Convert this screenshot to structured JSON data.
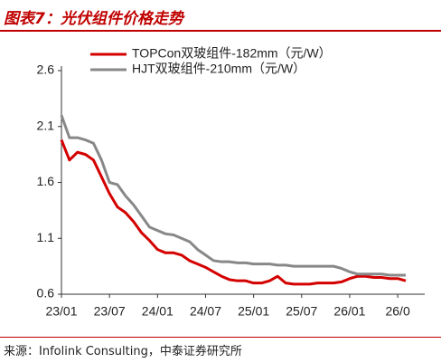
{
  "chart_data": {
    "type": "line",
    "title": "图表7：光伏组件价格走势",
    "source": "来源：Infolink Consulting，中泰证券研究所",
    "categories": [
      "23/01",
      null,
      null,
      null,
      null,
      null,
      "23/07",
      null,
      null,
      null,
      null,
      null,
      "24/01",
      null,
      null,
      null,
      null,
      null,
      "24/07",
      null,
      null,
      null,
      null,
      null,
      "25/01",
      null,
      null,
      null,
      null,
      null,
      "25/07",
      null,
      null,
      null,
      null,
      null,
      "26/01",
      null,
      null,
      null,
      null,
      null,
      "26/0",
      null
    ],
    "series": [
      {
        "name": "TOPCon双玻组件-182mm（元/W）",
        "color": "#d40000",
        "values": [
          1.98,
          1.8,
          1.87,
          1.85,
          1.8,
          1.65,
          1.5,
          1.38,
          1.33,
          1.25,
          1.15,
          1.08,
          1.0,
          0.97,
          0.97,
          0.95,
          0.9,
          0.87,
          0.84,
          0.8,
          0.76,
          0.73,
          0.72,
          0.72,
          0.7,
          0.7,
          0.72,
          0.76,
          0.7,
          0.69,
          0.69,
          0.69,
          0.7,
          0.7,
          0.7,
          0.71,
          0.74,
          0.76,
          0.76,
          0.75,
          0.75,
          0.74,
          0.74,
          0.72
        ]
      },
      {
        "name": "HJT双玻组件-210mm（元/W）",
        "color": "#888888",
        "values": [
          2.2,
          2.0,
          2.0,
          1.98,
          1.95,
          1.8,
          1.6,
          1.58,
          1.48,
          1.4,
          1.3,
          1.2,
          1.17,
          1.14,
          1.13,
          1.1,
          1.07,
          1.0,
          0.95,
          0.9,
          0.89,
          0.89,
          0.88,
          0.88,
          0.87,
          0.87,
          0.87,
          0.86,
          0.86,
          0.85,
          0.85,
          0.85,
          0.85,
          0.85,
          0.85,
          0.83,
          0.8,
          0.78,
          0.78,
          0.78,
          0.78,
          0.77,
          0.77,
          0.77
        ]
      }
    ],
    "ylim": [
      0.6,
      2.6
    ],
    "yticks": [
      0.6,
      1.1,
      1.6,
      2.1,
      2.6
    ],
    "grid": false
  }
}
